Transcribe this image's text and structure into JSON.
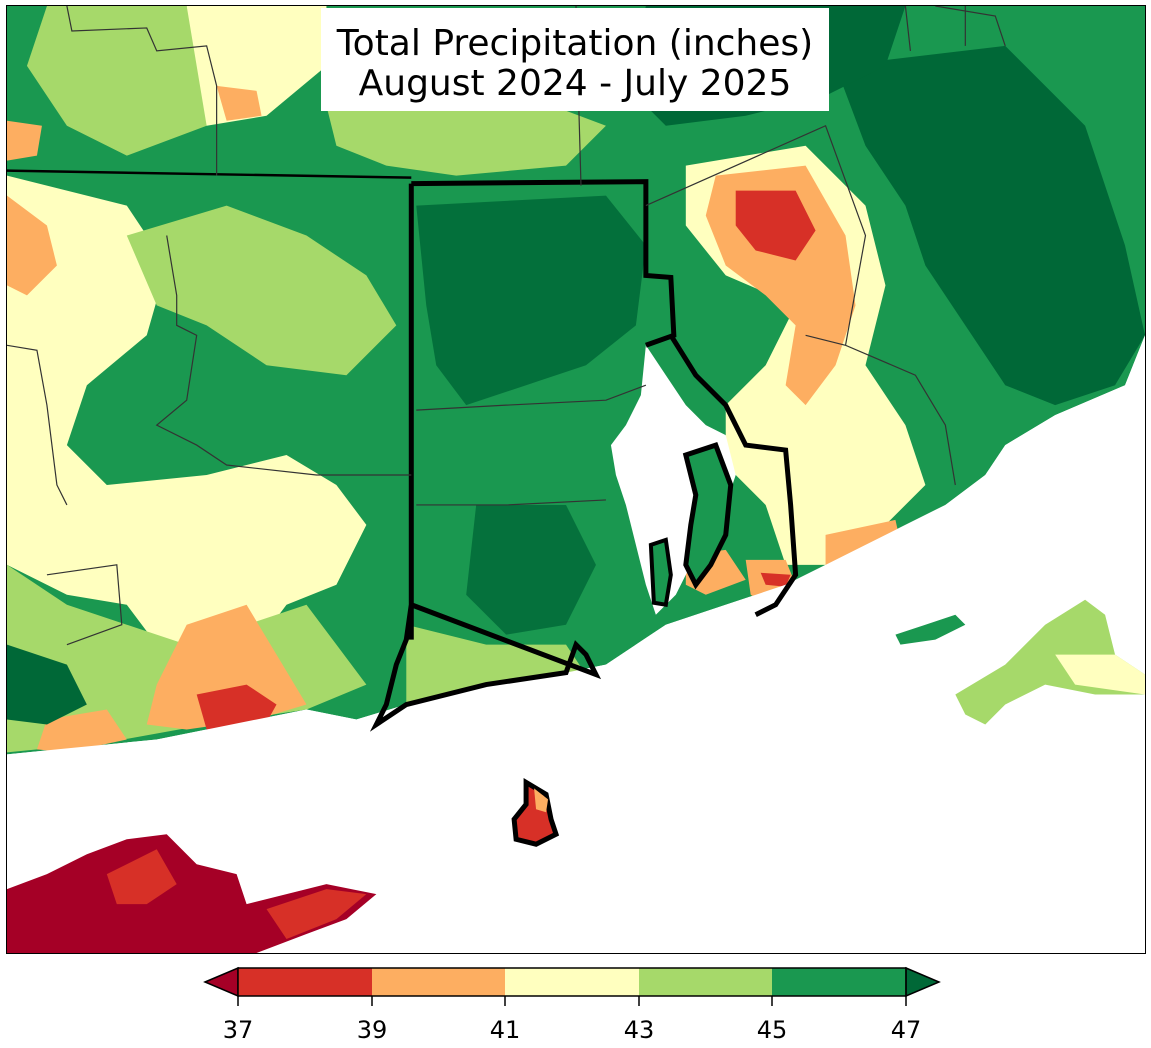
{
  "title": {
    "line1": "Total Precipitation (inches)",
    "line2": "August 2024 - July 2025"
  },
  "colorbar": {
    "ticks": [
      "37",
      "39",
      "41",
      "43",
      "45",
      "47"
    ],
    "extend": "both"
  },
  "legend_colors": {
    "below_37": "#a50026",
    "c37_39": "#d73027",
    "c39_41": "#fdae61",
    "c41_43": "#ffffbf",
    "c43_45": "#a6d96a",
    "c45_47": "#1a9850",
    "above_47": "#006837"
  }
}
